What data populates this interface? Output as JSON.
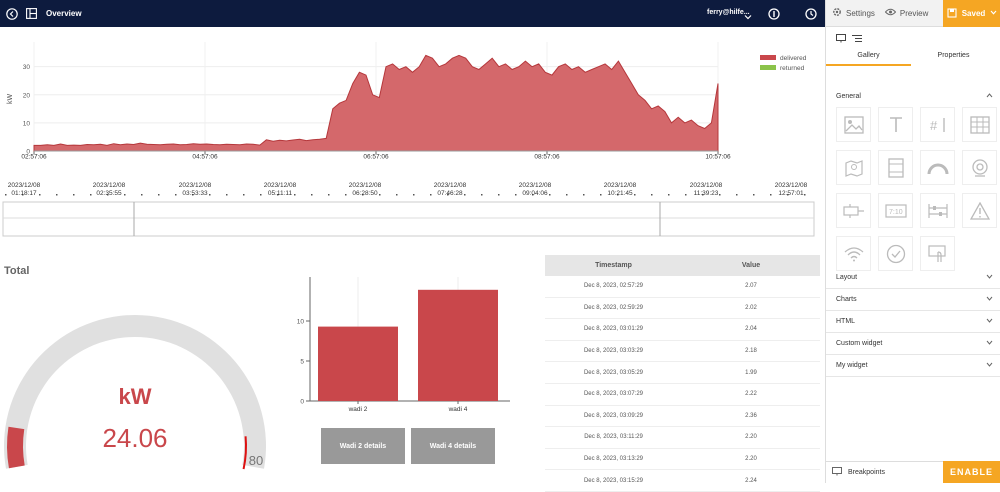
{
  "header": {
    "title": "Overview",
    "user": "ferry@hilfe..."
  },
  "right_panel": {
    "settings_label": "Settings",
    "preview_label": "Preview",
    "saved_label": "Saved",
    "tab_gallery": "Gallery",
    "tab_properties": "Properties",
    "sections": [
      "General",
      "Layout",
      "Charts",
      "HTML",
      "Custom widget",
      "My widget"
    ],
    "breakpoints_label": "Breakpoints",
    "enable_label": "ENABLE"
  },
  "timeseries": {
    "legend": [
      "delivered",
      "returned"
    ],
    "ylabel": "kW",
    "yticks": [
      "0",
      "10",
      "20",
      "30"
    ],
    "xticks": [
      "02:57:06",
      "04:57:06",
      "06:57:06",
      "08:57:06",
      "10:57:06"
    ],
    "navigator_dates": [
      [
        "2023/12/08",
        "01:18:17"
      ],
      [
        "2023/12/08",
        "02:35:55"
      ],
      [
        "2023/12/08",
        "03:53:33"
      ],
      [
        "2023/12/08",
        "05:11:11"
      ],
      [
        "2023/12/08",
        "06:28:50"
      ],
      [
        "2023/12/08",
        "07:46:28"
      ],
      [
        "2023/12/08",
        "09:04:06"
      ],
      [
        "2023/12/08",
        "10:21:45"
      ],
      [
        "2023/12/08",
        "11:39:23"
      ],
      [
        "2023/12/08",
        "12:57:01"
      ]
    ]
  },
  "gauge": {
    "title": "Total",
    "unit": "kW",
    "value": "24.06",
    "max": "80",
    "value_num": 24.06,
    "max_num": 80
  },
  "bar_chart": {
    "yticks": [
      "0",
      "5",
      "10"
    ],
    "buttons": [
      "Wadi 2 details",
      "Wadi 4 details"
    ]
  },
  "table": {
    "headers": [
      "Timestamp",
      "Value"
    ],
    "rows": [
      [
        "Dec 8, 2023, 02:57:29",
        "2.07"
      ],
      [
        "Dec 8, 2023, 02:59:29",
        "2.02"
      ],
      [
        "Dec 8, 2023, 03:01:29",
        "2.04"
      ],
      [
        "Dec 8, 2023, 03:03:29",
        "2.18"
      ],
      [
        "Dec 8, 2023, 03:05:29",
        "1.99"
      ],
      [
        "Dec 8, 2023, 03:07:29",
        "2.22"
      ],
      [
        "Dec 8, 2023, 03:09:29",
        "2.36"
      ],
      [
        "Dec 8, 2023, 03:11:29",
        "2.20"
      ],
      [
        "Dec 8, 2023, 03:13:29",
        "2.20"
      ],
      [
        "Dec 8, 2023, 03:15:29",
        "2.24"
      ]
    ]
  },
  "chart_data": [
    {
      "type": "area",
      "series": [
        {
          "name": "delivered",
          "color": "#c9474b",
          "values": [
            2,
            2,
            2.2,
            2,
            2.5,
            2,
            2.1,
            2,
            2.3,
            2.2,
            2.4,
            2,
            2.6,
            2.2,
            2.5,
            2.3,
            2.8,
            2.4,
            2.3,
            2.2,
            2.4,
            2.5,
            2.2,
            2.3,
            2.6,
            2.4,
            2.5,
            2.3,
            2.2,
            2.4,
            2.3,
            2.2,
            2.5,
            2.4,
            2.1,
            4,
            3.5,
            3.8,
            3.6,
            3.9,
            4.2,
            3.7,
            4,
            4.2,
            4.5,
            15,
            17,
            18,
            24,
            28,
            27,
            20,
            19,
            30,
            31,
            29,
            30,
            28,
            30,
            34,
            33,
            30,
            31,
            33,
            34,
            33,
            30,
            29,
            31,
            33,
            30,
            31,
            29,
            30,
            32,
            30,
            31,
            28,
            27,
            30,
            31,
            29,
            30,
            28,
            29,
            30,
            31,
            29,
            32,
            28,
            24,
            20,
            18,
            15,
            16,
            14,
            10,
            12,
            10,
            11,
            9,
            8,
            10,
            24
          ]
        },
        {
          "name": "returned",
          "color": "#8bc34a",
          "values": [
            0,
            0,
            0,
            0,
            0,
            0,
            0,
            0,
            0,
            0
          ]
        }
      ],
      "xlabel": "",
      "ylabel": "kW",
      "ylim": [
        0,
        37
      ]
    },
    {
      "type": "bar",
      "categories": [
        "wadi 2",
        "wadi 4"
      ],
      "values": [
        9.3,
        13.9
      ],
      "ylim": [
        0,
        15.5
      ]
    }
  ]
}
